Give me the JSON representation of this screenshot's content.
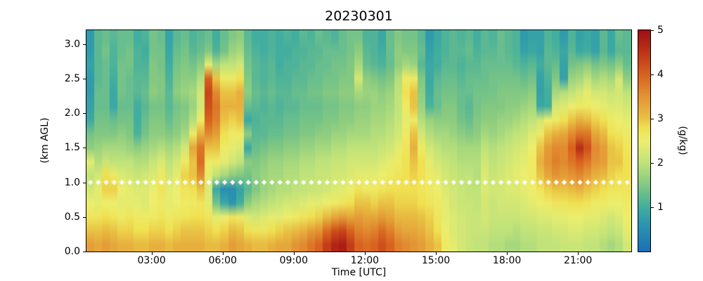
{
  "chart_data": {
    "type": "heatmap",
    "title": "20230301",
    "xlabel": "Time [UTC]",
    "ylabel": "(km AGL)",
    "colorbar_label": "(g/kg)",
    "vmin": 0,
    "vmax": 5,
    "time_start_min": 15,
    "time_end_min": 1395,
    "z_min_km": 0.0,
    "z_max_km": 3.2,
    "grid": false,
    "x_ticks": [
      {
        "label": "03:00",
        "minutes": 180
      },
      {
        "label": "06:00",
        "minutes": 360
      },
      {
        "label": "09:00",
        "minutes": 540
      },
      {
        "label": "12:00",
        "minutes": 720
      },
      {
        "label": "15:00",
        "minutes": 900
      },
      {
        "label": "18:00",
        "minutes": 1080
      },
      {
        "label": "21:00",
        "minutes": 1260
      }
    ],
    "y_ticks": [
      {
        "label": "0.0",
        "km": 0.0
      },
      {
        "label": "0.5",
        "km": 0.5
      },
      {
        "label": "1.0",
        "km": 1.0
      },
      {
        "label": "1.5",
        "km": 1.5
      },
      {
        "label": "2.0",
        "km": 2.0
      },
      {
        "label": "2.5",
        "km": 2.5
      },
      {
        "label": "3.0",
        "km": 3.0
      }
    ],
    "colorbar_ticks": [
      {
        "label": "1",
        "value": 1
      },
      {
        "label": "2",
        "value": 2
      },
      {
        "label": "3",
        "value": 3
      },
      {
        "label": "4",
        "value": 4
      },
      {
        "label": "5",
        "value": 5
      }
    ],
    "colormap_stops": [
      [
        0.0,
        "#1a70b8"
      ],
      [
        0.6,
        "#2b95b0"
      ],
      [
        1.0,
        "#41ae9f"
      ],
      [
        1.5,
        "#82c882"
      ],
      [
        2.0,
        "#c0e37a"
      ],
      [
        2.5,
        "#edee6d"
      ],
      [
        2.8,
        "#f0e152"
      ],
      [
        3.0,
        "#e9c344"
      ],
      [
        3.5,
        "#e39434"
      ],
      [
        4.0,
        "#d8621f"
      ],
      [
        4.5,
        "#bf3417"
      ],
      [
        5.0,
        "#9d0f15"
      ]
    ],
    "marker_line": {
      "height_km": 1.0,
      "color": "#ffffff",
      "marker": "plus"
    },
    "column_step_min": 20,
    "rows_per_column": 16,
    "row_height_km": 0.2,
    "values_bottom_to_top_per_column": [
      [
        3.4,
        3.0,
        2.7,
        2.5,
        2.2,
        2.0,
        2.4,
        1.6,
        1.4,
        0.9,
        0.8,
        0.7,
        0.7,
        0.8,
        0.7,
        0.7
      ],
      [
        3.3,
        3.0,
        2.7,
        2.4,
        2.4,
        2.2,
        1.9,
        1.7,
        1.5,
        1.4,
        1.3,
        1.3,
        1.2,
        1.2,
        1.2,
        1.2
      ],
      [
        3.4,
        3.1,
        2.8,
        2.5,
        2.9,
        2.8,
        2.1,
        1.8,
        1.5,
        1.4,
        1.3,
        1.3,
        1.3,
        1.3,
        1.4,
        1.3
      ],
      [
        3.3,
        3.0,
        2.7,
        2.5,
        2.9,
        2.6,
        2.0,
        1.8,
        1.5,
        1.3,
        0.9,
        0.9,
        1.0,
        1.1,
        1.1,
        1.2
      ],
      [
        3.2,
        2.9,
        2.6,
        2.4,
        2.5,
        2.3,
        2.0,
        1.8,
        1.6,
        1.4,
        1.3,
        1.4,
        1.4,
        1.4,
        1.3,
        1.3
      ],
      [
        3.2,
        2.9,
        2.7,
        2.4,
        2.4,
        2.2,
        2.0,
        1.7,
        1.5,
        1.4,
        1.3,
        1.3,
        1.3,
        1.4,
        1.4,
        1.3
      ],
      [
        3.1,
        2.8,
        2.6,
        2.4,
        2.3,
        2.1,
        1.9,
        1.6,
        1.1,
        1.0,
        1.0,
        1.2,
        1.2,
        1.1,
        1.1,
        1.0
      ],
      [
        3.1,
        2.8,
        2.6,
        2.3,
        2.3,
        2.2,
        1.9,
        1.7,
        1.4,
        1.3,
        1.2,
        1.3,
        1.2,
        1.1,
        1.0,
        1.1
      ],
      [
        3.2,
        2.9,
        2.6,
        2.5,
        2.5,
        2.3,
        2.1,
        1.8,
        1.6,
        1.5,
        1.4,
        1.6,
        1.5,
        1.5,
        1.4,
        1.4
      ],
      [
        3.2,
        2.9,
        2.7,
        2.6,
        2.7,
        2.6,
        2.3,
        1.9,
        1.6,
        1.5,
        1.4,
        1.5,
        1.5,
        1.4,
        1.4,
        1.3
      ],
      [
        3.1,
        2.8,
        2.6,
        2.4,
        2.4,
        2.2,
        2.0,
        1.8,
        1.5,
        1.3,
        1.2,
        1.2,
        1.1,
        1.0,
        0.9,
        0.8
      ],
      [
        3.2,
        2.9,
        2.7,
        2.5,
        2.5,
        2.4,
        2.2,
        1.9,
        1.6,
        1.5,
        1.4,
        1.6,
        1.5,
        1.4,
        1.3,
        1.2
      ],
      [
        3.2,
        3.0,
        2.7,
        2.6,
        2.7,
        2.9,
        2.6,
        2.2,
        1.8,
        1.6,
        1.5,
        1.7,
        1.6,
        1.5,
        1.4,
        1.3
      ],
      [
        3.2,
        3.0,
        2.8,
        2.6,
        2.8,
        3.0,
        3.0,
        3.3,
        2.6,
        1.9,
        1.7,
        1.8,
        1.6,
        1.4,
        1.2,
        1.1
      ],
      [
        3.2,
        3.0,
        2.8,
        2.7,
        3.0,
        3.6,
        3.9,
        3.8,
        3.2,
        2.6,
        2.2,
        2.2,
        1.9,
        1.6,
        1.3,
        1.2
      ],
      [
        3.1,
        2.9,
        2.7,
        2.4,
        2.3,
        2.4,
        2.6,
        3.0,
        3.6,
        4.0,
        4.2,
        4.3,
        4.0,
        2.4,
        1.5,
        1.3
      ],
      [
        3.1,
        2.8,
        2.4,
        1.4,
        0.9,
        2.0,
        2.6,
        3.0,
        3.4,
        3.7,
        3.8,
        3.6,
        3.0,
        1.8,
        1.1,
        1.0
      ],
      [
        3.2,
        2.9,
        2.5,
        0.9,
        0.5,
        1.8,
        2.4,
        2.6,
        2.8,
        3.0,
        3.2,
        3.0,
        2.6,
        2.0,
        1.4,
        1.3
      ],
      [
        3.4,
        3.1,
        2.7,
        0.6,
        0.5,
        1.6,
        2.2,
        2.4,
        2.6,
        2.9,
        3.2,
        3.0,
        2.6,
        2.0,
        1.7,
        1.5
      ],
      [
        3.3,
        3.0,
        2.6,
        1.0,
        0.8,
        1.5,
        2.0,
        2.3,
        2.6,
        3.0,
        3.2,
        3.2,
        2.8,
        2.2,
        1.8,
        1.6
      ],
      [
        3.2,
        2.8,
        2.3,
        1.6,
        1.2,
        1.4,
        1.6,
        0.9,
        1.6,
        0.9,
        1.3,
        1.6,
        1.5,
        1.4,
        1.3,
        1.2
      ],
      [
        3.1,
        2.7,
        2.2,
        1.8,
        1.5,
        1.6,
        1.5,
        1.3,
        1.2,
        1.1,
        1.2,
        1.3,
        1.2,
        1.2,
        1.1,
        1.0
      ],
      [
        3.1,
        2.7,
        2.3,
        1.9,
        1.7,
        1.7,
        1.6,
        1.4,
        1.2,
        1.2,
        1.1,
        1.2,
        1.1,
        1.1,
        1.0,
        1.0
      ],
      [
        3.2,
        2.8,
        2.4,
        2.0,
        1.8,
        1.8,
        1.7,
        1.5,
        1.3,
        1.2,
        1.2,
        1.3,
        1.2,
        1.2,
        1.1,
        1.1
      ],
      [
        3.3,
        2.9,
        2.4,
        2.1,
        1.9,
        1.8,
        1.7,
        1.5,
        1.3,
        1.2,
        1.1,
        1.2,
        1.1,
        1.0,
        1.0,
        1.0
      ],
      [
        3.3,
        3.0,
        2.5,
        2.2,
        1.9,
        1.9,
        1.8,
        1.6,
        1.4,
        1.3,
        1.2,
        1.2,
        1.1,
        1.1,
        1.0,
        1.1
      ],
      [
        3.5,
        3.1,
        2.6,
        2.2,
        2.0,
        1.9,
        1.8,
        1.6,
        1.4,
        1.3,
        1.2,
        1.3,
        1.2,
        1.1,
        1.1,
        1.0
      ],
      [
        3.6,
        3.2,
        2.7,
        2.3,
        2.0,
        2.0,
        1.9,
        1.7,
        1.5,
        1.4,
        1.3,
        1.3,
        1.2,
        1.2,
        1.1,
        1.2
      ],
      [
        3.8,
        3.4,
        2.8,
        2.4,
        2.1,
        2.0,
        1.9,
        1.7,
        1.5,
        1.4,
        1.3,
        1.4,
        1.3,
        1.2,
        1.2,
        1.1
      ],
      [
        4.0,
        3.5,
        2.9,
        2.4,
        2.1,
        2.1,
        2.0,
        1.8,
        1.6,
        1.4,
        1.3,
        1.4,
        1.3,
        1.3,
        1.2,
        1.3
      ],
      [
        4.4,
        3.9,
        3.1,
        2.5,
        2.2,
        2.1,
        2.0,
        1.8,
        1.6,
        1.5,
        1.4,
        1.5,
        1.4,
        1.3,
        1.3,
        1.2
      ],
      [
        4.7,
        4.2,
        3.3,
        2.6,
        2.3,
        2.2,
        2.1,
        1.9,
        1.7,
        1.5,
        1.4,
        1.5,
        1.4,
        1.4,
        1.3,
        1.1
      ],
      [
        4.8,
        4.3,
        3.4,
        2.7,
        2.4,
        2.2,
        2.1,
        1.9,
        1.7,
        1.6,
        1.5,
        1.6,
        1.5,
        1.4,
        1.3,
        1.3
      ],
      [
        4.4,
        4.0,
        3.3,
        2.8,
        2.5,
        2.3,
        2.2,
        2.0,
        1.8,
        1.6,
        1.5,
        1.6,
        1.5,
        1.5,
        1.4,
        1.4
      ],
      [
        4.0,
        3.7,
        3.4,
        3.0,
        2.7,
        2.4,
        2.2,
        2.0,
        1.8,
        1.7,
        1.6,
        1.8,
        2.2,
        1.8,
        1.6,
        1.4
      ],
      [
        3.9,
        3.6,
        3.3,
        3.0,
        2.6,
        2.4,
        2.2,
        2.0,
        1.8,
        1.7,
        1.6,
        1.7,
        1.6,
        1.3,
        1.2,
        1.1
      ],
      [
        4.0,
        3.7,
        3.3,
        2.9,
        2.6,
        2.4,
        2.2,
        2.0,
        1.9,
        1.8,
        1.7,
        1.7,
        1.5,
        1.2,
        1.1,
        1.1
      ],
      [
        4.2,
        3.9,
        3.4,
        3.0,
        2.7,
        2.5,
        2.3,
        2.1,
        1.9,
        1.8,
        1.7,
        1.6,
        1.4,
        1.1,
        1.0,
        0.9
      ],
      [
        4.0,
        3.7,
        3.3,
        3.0,
        2.8,
        2.6,
        2.4,
        2.2,
        2.0,
        1.9,
        1.8,
        1.7,
        1.5,
        1.3,
        1.3,
        1.3
      ],
      [
        3.7,
        3.4,
        3.1,
        2.9,
        2.8,
        2.7,
        2.6,
        2.4,
        2.2,
        2.1,
        2.0,
        2.0,
        1.9,
        1.6,
        1.6,
        1.5
      ],
      [
        3.6,
        3.3,
        3.1,
        2.9,
        2.8,
        2.8,
        2.8,
        2.7,
        2.6,
        2.4,
        2.6,
        2.8,
        2.6,
        1.8,
        1.5,
        1.4
      ],
      [
        3.5,
        3.3,
        3.1,
        2.9,
        2.8,
        2.9,
        3.0,
        3.2,
        3.0,
        2.6,
        3.0,
        3.0,
        2.6,
        1.7,
        1.5,
        1.4
      ],
      [
        3.4,
        3.2,
        3.0,
        2.8,
        2.7,
        2.8,
        2.8,
        2.6,
        2.2,
        1.9,
        1.7,
        1.6,
        1.5,
        1.2,
        1.3,
        1.2
      ],
      [
        3.2,
        3.0,
        2.9,
        2.7,
        2.6,
        2.6,
        2.4,
        2.2,
        1.9,
        1.7,
        1.1,
        1.0,
        0.9,
        0.9,
        0.8,
        0.7
      ],
      [
        3.0,
        2.8,
        2.7,
        2.6,
        2.5,
        2.4,
        2.2,
        2.0,
        1.8,
        1.6,
        1.3,
        1.3,
        1.2,
        1.0,
        1.0,
        0.9
      ],
      [
        2.6,
        2.5,
        2.4,
        2.4,
        2.3,
        2.2,
        2.1,
        1.9,
        1.8,
        1.6,
        1.5,
        1.4,
        1.3,
        1.2,
        1.1,
        1.1
      ],
      [
        2.4,
        2.3,
        2.3,
        2.2,
        2.2,
        2.1,
        2.0,
        1.9,
        1.7,
        1.6,
        1.5,
        1.4,
        1.3,
        1.2,
        1.2,
        1.2
      ],
      [
        2.2,
        2.2,
        2.2,
        2.1,
        2.1,
        2.0,
        1.9,
        1.8,
        1.6,
        1.4,
        1.3,
        1.3,
        1.2,
        1.1,
        1.2,
        1.1
      ],
      [
        2.1,
        2.1,
        2.1,
        2.1,
        2.0,
        2.0,
        1.9,
        1.8,
        1.5,
        1.3,
        1.2,
        1.3,
        1.3,
        1.2,
        1.3,
        1.2
      ],
      [
        2.0,
        2.1,
        2.1,
        2.0,
        2.0,
        1.9,
        1.9,
        1.8,
        1.6,
        1.5,
        1.4,
        1.4,
        1.3,
        1.2,
        1.1,
        1.0
      ],
      [
        2.0,
        2.1,
        2.2,
        2.2,
        2.3,
        2.3,
        2.2,
        2.0,
        1.8,
        1.6,
        1.5,
        1.4,
        1.3,
        1.3,
        1.2,
        1.2
      ],
      [
        1.9,
        2.0,
        2.1,
        2.1,
        2.2,
        2.1,
        2.0,
        1.9,
        1.7,
        1.6,
        1.5,
        1.4,
        1.4,
        1.3,
        1.2,
        1.1
      ],
      [
        1.9,
        2.0,
        2.1,
        2.2,
        2.2,
        2.2,
        2.1,
        2.0,
        1.8,
        1.7,
        1.5,
        1.5,
        1.4,
        1.3,
        1.3,
        1.3
      ],
      [
        1.8,
        2.0,
        2.1,
        2.2,
        2.3,
        2.3,
        2.2,
        2.1,
        1.9,
        1.7,
        1.6,
        1.5,
        1.4,
        1.3,
        1.2,
        1.2
      ],
      [
        1.8,
        1.9,
        2.1,
        2.2,
        2.3,
        2.4,
        2.3,
        2.2,
        2.0,
        1.8,
        1.6,
        1.5,
        1.4,
        1.2,
        1.1,
        1.1
      ],
      [
        1.9,
        2.0,
        2.2,
        2.3,
        2.4,
        2.5,
        2.4,
        2.3,
        2.1,
        1.9,
        1.7,
        1.5,
        1.3,
        1.1,
        0.8,
        0.7
      ],
      [
        1.9,
        2.0,
        2.2,
        2.4,
        2.5,
        2.6,
        2.6,
        2.5,
        2.3,
        2.0,
        1.8,
        1.6,
        1.4,
        1.2,
        0.9,
        0.8
      ],
      [
        2.0,
        2.1,
        2.3,
        2.5,
        2.7,
        3.0,
        3.2,
        3.0,
        2.6,
        2.2,
        0.9,
        0.8,
        0.8,
        1.0,
        0.8,
        0.8
      ],
      [
        2.0,
        2.1,
        2.3,
        2.6,
        2.9,
        3.3,
        3.5,
        3.4,
        3.0,
        2.5,
        1.0,
        1.0,
        1.1,
        1.2,
        1.2,
        1.1
      ],
      [
        2.0,
        2.2,
        2.4,
        2.7,
        3.0,
        3.5,
        3.7,
        3.6,
        3.2,
        2.6,
        2.2,
        1.8,
        1.5,
        1.3,
        1.1,
        1.0
      ],
      [
        2.1,
        2.2,
        2.4,
        2.7,
        3.0,
        3.4,
        3.6,
        3.6,
        3.3,
        2.8,
        2.3,
        1.9,
        0.8,
        0.8,
        0.9,
        0.7
      ],
      [
        2.1,
        2.3,
        2.5,
        2.8,
        3.1,
        3.5,
        3.8,
        4.0,
        3.6,
        3.0,
        2.5,
        2.0,
        1.7,
        1.4,
        1.2,
        1.1
      ],
      [
        2.1,
        2.3,
        2.5,
        2.8,
        3.2,
        3.6,
        4.0,
        4.6,
        3.8,
        3.2,
        2.6,
        2.2,
        1.8,
        1.5,
        0.9,
        0.8
      ],
      [
        2.0,
        2.2,
        2.4,
        2.7,
        3.0,
        3.4,
        3.8,
        4.2,
        3.8,
        3.1,
        2.6,
        2.4,
        2.0,
        1.6,
        1.0,
        0.9
      ],
      [
        2.0,
        2.2,
        2.4,
        2.6,
        2.9,
        3.2,
        3.5,
        3.6,
        3.3,
        2.9,
        2.5,
        2.2,
        1.8,
        1.4,
        0.8,
        0.8
      ],
      [
        1.9,
        2.1,
        2.3,
        2.6,
        2.8,
        3.1,
        3.4,
        3.4,
        3.1,
        2.8,
        2.4,
        2.2,
        1.9,
        1.5,
        1.2,
        1.2
      ],
      [
        1.8,
        2.0,
        2.2,
        2.5,
        2.7,
        2.9,
        3.0,
        3.0,
        2.8,
        2.6,
        2.3,
        2.1,
        1.8,
        1.4,
        0.9,
        0.9
      ],
      [
        1.9,
        2.1,
        2.3,
        2.5,
        2.7,
        2.8,
        3.0,
        2.9,
        2.7,
        2.5,
        2.3,
        2.2,
        2.2,
        1.6,
        1.2,
        1.3
      ],
      [
        2.2,
        2.4,
        2.5,
        2.6,
        2.7,
        2.8,
        2.8,
        2.7,
        2.6,
        2.4,
        2.2,
        2.0,
        1.6,
        1.3,
        1.2,
        1.2
      ]
    ]
  }
}
